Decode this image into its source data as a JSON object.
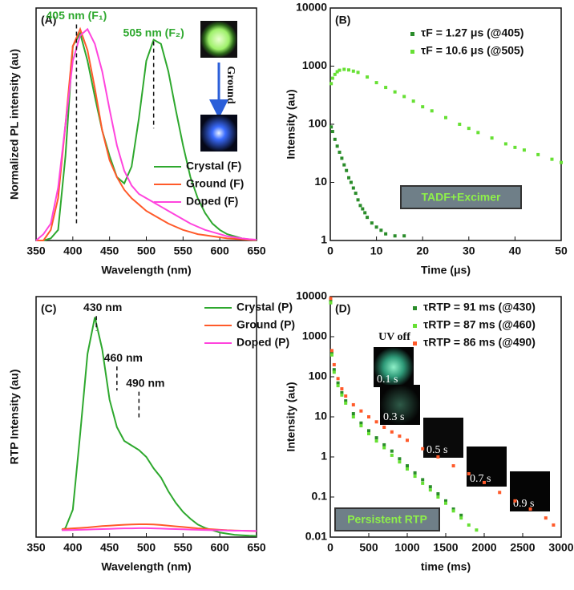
{
  "chart_data": [
    {
      "type": "line",
      "panel_label": "(A)",
      "x_label": "Wavelength (nm)",
      "y_label": "Normalized PL intensity (au)",
      "xlim": [
        350,
        650
      ],
      "xticks": [
        350,
        400,
        450,
        500,
        550,
        600,
        650
      ],
      "ylim": [
        0,
        1.1
      ],
      "log_y": false,
      "legend": "lower right",
      "x": [
        350,
        360,
        370,
        380,
        390,
        400,
        410,
        420,
        430,
        440,
        450,
        460,
        470,
        480,
        490,
        500,
        510,
        520,
        530,
        540,
        550,
        560,
        570,
        580,
        590,
        600,
        610,
        620,
        630,
        640,
        650
      ],
      "series": [
        {
          "name": "Crystal (F)",
          "color": "#2ea82e",
          "values": [
            0,
            0,
            0.01,
            0.05,
            0.4,
            0.92,
            0.98,
            0.85,
            0.68,
            0.52,
            0.4,
            0.3,
            0.27,
            0.35,
            0.58,
            0.85,
            0.95,
            0.93,
            0.8,
            0.62,
            0.45,
            0.3,
            0.2,
            0.13,
            0.08,
            0.05,
            0.03,
            0.02,
            0.01,
            0.005,
            0
          ]
        },
        {
          "name": "Ground (F)",
          "color": "#ff5a2a",
          "values": [
            0,
            0,
            0.05,
            0.2,
            0.55,
            0.92,
            1.0,
            0.9,
            0.72,
            0.52,
            0.38,
            0.3,
            0.24,
            0.2,
            0.17,
            0.14,
            0.12,
            0.1,
            0.08,
            0.065,
            0.05,
            0.04,
            0.03,
            0.025,
            0.02,
            0.015,
            0.01,
            0.008,
            0.005,
            0.003,
            0.002
          ]
        },
        {
          "name": "Doped (F)",
          "color": "#ff44dd",
          "values": [
            0,
            0.03,
            0.08,
            0.25,
            0.55,
            0.85,
            0.97,
            1.0,
            0.93,
            0.8,
            0.62,
            0.45,
            0.33,
            0.26,
            0.22,
            0.2,
            0.18,
            0.16,
            0.14,
            0.12,
            0.1,
            0.08,
            0.065,
            0.05,
            0.04,
            0.03,
            0.02,
            0.015,
            0.01,
            0.006,
            0.004
          ]
        }
      ],
      "annotations": [
        {
          "text": "405 nm (F₁)",
          "x": 405,
          "y": 1.06,
          "line_to": 0.08
        },
        {
          "text": "505 nm (F₂)",
          "x": 510,
          "y": 0.98,
          "line_to": 0.53
        }
      ],
      "inset_labels": [
        "Ground"
      ]
    },
    {
      "type": "scatter",
      "panel_label": "(B)",
      "x_label": "Time (μs)",
      "y_label": "Intensity (au)",
      "xlim": [
        0,
        50
      ],
      "xticks": [
        0,
        10,
        20,
        30,
        40,
        50
      ],
      "ylim": [
        1,
        10000
      ],
      "yticks": [
        1,
        10,
        100,
        1000,
        10000
      ],
      "log_y": true,
      "legend": "upper right",
      "series": [
        {
          "name": "τF = 1.27 μs (@405)",
          "color": "#2a8c2a",
          "x": [
            0.2,
            0.5,
            1,
            1.5,
            2,
            2.5,
            3,
            3.5,
            4,
            4.5,
            5,
            5.5,
            6,
            6.5,
            7,
            7.5,
            8,
            9,
            10,
            11,
            12,
            14,
            16
          ],
          "values": [
            90,
            75,
            55,
            42,
            33,
            26,
            20,
            16,
            12,
            10,
            8,
            6.5,
            5,
            4,
            3.5,
            3,
            2.5,
            2,
            1.7,
            1.5,
            1.3,
            1.2,
            1.2
          ]
        },
        {
          "name": "τF = 10.6 μs (@505)",
          "color": "#66e033",
          "x": [
            0.2,
            0.5,
            1,
            1.5,
            2,
            3,
            4,
            5,
            6,
            8,
            10,
            12,
            14,
            16,
            18,
            20,
            22,
            25,
            28,
            30,
            32,
            35,
            38,
            40,
            42,
            45,
            48,
            50
          ],
          "values": [
            500,
            620,
            720,
            800,
            850,
            880,
            860,
            820,
            780,
            650,
            520,
            430,
            360,
            300,
            250,
            200,
            170,
            130,
            100,
            85,
            72,
            58,
            46,
            40,
            36,
            30,
            25,
            22
          ]
        }
      ],
      "callout": "TADF+Excimer"
    },
    {
      "type": "line",
      "panel_label": "(C)",
      "x_label": "Wavelength (nm)",
      "y_label": "RTP Intensity (au)",
      "xlim": [
        350,
        650
      ],
      "xticks": [
        350,
        400,
        450,
        500,
        550,
        600,
        650
      ],
      "ylim": [
        0,
        1.05
      ],
      "log_y": false,
      "legend": "upper right",
      "x": [
        385,
        390,
        400,
        410,
        420,
        430,
        440,
        450,
        460,
        470,
        480,
        490,
        500,
        510,
        520,
        530,
        540,
        550,
        560,
        570,
        580,
        590,
        600,
        610,
        620,
        630,
        640,
        650
      ],
      "series": [
        {
          "name": "Crystal (P)",
          "color": "#2ea82e",
          "values": [
            0.03,
            0.04,
            0.12,
            0.45,
            0.8,
            0.96,
            0.82,
            0.6,
            0.48,
            0.42,
            0.4,
            0.38,
            0.35,
            0.3,
            0.26,
            0.2,
            0.15,
            0.11,
            0.08,
            0.055,
            0.04,
            0.03,
            0.02,
            0.015,
            0.01,
            0.008,
            0.006,
            0.005
          ]
        },
        {
          "name": "Ground (P)",
          "color": "#ff5a2a",
          "values": [
            0.035,
            0.036,
            0.038,
            0.04,
            0.042,
            0.045,
            0.048,
            0.05,
            0.052,
            0.054,
            0.055,
            0.056,
            0.056,
            0.055,
            0.053,
            0.05,
            0.047,
            0.044,
            0.041,
            0.038,
            0.036,
            0.034,
            0.032,
            0.03,
            0.029,
            0.028,
            0.027,
            0.026
          ]
        },
        {
          "name": "Doped (P)",
          "color": "#ff44dd",
          "values": [
            0.03,
            0.03,
            0.031,
            0.032,
            0.033,
            0.034,
            0.035,
            0.036,
            0.037,
            0.038,
            0.038,
            0.039,
            0.039,
            0.038,
            0.037,
            0.036,
            0.035,
            0.034,
            0.033,
            0.032,
            0.031,
            0.03,
            0.03,
            0.029,
            0.028,
            0.028,
            0.027,
            0.027
          ]
        }
      ],
      "annotations": [
        {
          "text": "430 nm",
          "x": 432,
          "y": 1.0,
          "line_to": 0.9
        },
        {
          "text": "460 nm",
          "x": 460,
          "y": 0.78,
          "line_to": 0.64
        },
        {
          "text": "490 nm",
          "x": 490,
          "y": 0.67,
          "line_to": 0.52
        }
      ]
    },
    {
      "type": "scatter",
      "panel_label": "(D)",
      "x_label": "time (ms)",
      "y_label": "Intensity (au)",
      "xlim": [
        0,
        3000
      ],
      "xticks": [
        0,
        500,
        1000,
        1500,
        2000,
        2500,
        3000
      ],
      "ylim": [
        0.01,
        10000
      ],
      "yticks": [
        0.01,
        0.1,
        1,
        10,
        100,
        1000,
        10000
      ],
      "log_y": true,
      "legend": "upper right",
      "series": [
        {
          "name": "τRTP = 91 ms (@430)",
          "color": "#2a8c2a",
          "x": [
            5,
            20,
            50,
            100,
            150,
            200,
            300,
            400,
            500,
            600,
            700,
            800,
            900,
            1000,
            1100,
            1200,
            1300,
            1400,
            1500,
            1600,
            1700
          ],
          "values": [
            8000,
            400,
            150,
            70,
            40,
            25,
            12,
            7,
            4.5,
            3,
            2,
            1.4,
            0.9,
            0.6,
            0.4,
            0.27,
            0.18,
            0.12,
            0.08,
            0.05,
            0.035
          ]
        },
        {
          "name": "τRTP = 87 ms (@460)",
          "color": "#66e033",
          "x": [
            5,
            20,
            50,
            100,
            150,
            200,
            300,
            400,
            500,
            600,
            700,
            800,
            900,
            1000,
            1100,
            1200,
            1300,
            1400,
            1500,
            1600,
            1700,
            1800,
            1900
          ],
          "values": [
            7000,
            350,
            130,
            60,
            35,
            22,
            10,
            6,
            3.8,
            2.5,
            1.7,
            1.1,
            0.75,
            0.5,
            0.33,
            0.22,
            0.15,
            0.1,
            0.07,
            0.045,
            0.03,
            0.02,
            0.015
          ]
        },
        {
          "name": "τRTP = 86 ms (@490)",
          "color": "#ff5a2a",
          "x": [
            5,
            20,
            50,
            100,
            150,
            200,
            300,
            400,
            500,
            600,
            700,
            800,
            900,
            1000,
            1200,
            1400,
            1600,
            1800,
            2000,
            2200,
            2400,
            2600,
            2800,
            2900
          ],
          "values": [
            9000,
            450,
            200,
            90,
            50,
            33,
            20,
            14,
            10,
            7.5,
            5.5,
            4.2,
            3.3,
            2.6,
            1.6,
            1.0,
            0.6,
            0.38,
            0.23,
            0.13,
            0.08,
            0.05,
            0.03,
            0.02
          ]
        }
      ],
      "callout": "Persistent RTP",
      "inset_labels": [
        "UV off",
        "0.1 s",
        "0.3 s",
        "0.5 s",
        "0.7 s",
        "0.9 s"
      ]
    }
  ]
}
